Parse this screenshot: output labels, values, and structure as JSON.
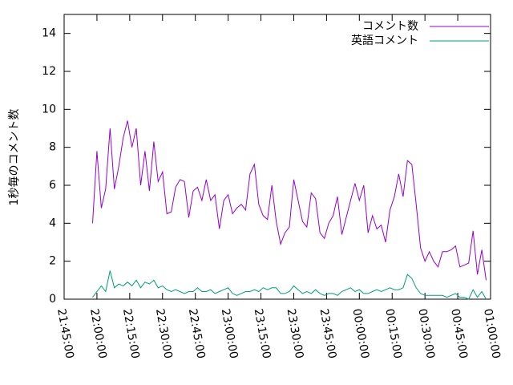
{
  "chart_data": {
    "type": "line",
    "ylabel": "1秒毎のコメント数",
    "x": [
      "21:58:00",
      "22:00:00",
      "22:02:00",
      "22:04:00",
      "22:06:00",
      "22:08:00",
      "22:10:00",
      "22:12:00",
      "22:14:00",
      "22:16:00",
      "22:18:00",
      "22:20:00",
      "22:22:00",
      "22:24:00",
      "22:26:00",
      "22:28:00",
      "22:30:00",
      "22:32:00",
      "22:34:00",
      "22:36:00",
      "22:38:00",
      "22:40:00",
      "22:42:00",
      "22:44:00",
      "22:46:00",
      "22:48:00",
      "22:50:00",
      "22:52:00",
      "22:54:00",
      "22:56:00",
      "22:58:00",
      "23:00:00",
      "23:02:00",
      "23:04:00",
      "23:06:00",
      "23:08:00",
      "23:10:00",
      "23:12:00",
      "23:14:00",
      "23:16:00",
      "23:18:00",
      "23:20:00",
      "23:22:00",
      "23:24:00",
      "23:26:00",
      "23:28:00",
      "23:30:00",
      "23:32:00",
      "23:34:00",
      "23:36:00",
      "23:38:00",
      "23:40:00",
      "23:42:00",
      "23:44:00",
      "23:46:00",
      "23:48:00",
      "23:50:00",
      "23:52:00",
      "23:54:00",
      "23:56:00",
      "23:58:00",
      "00:00:00",
      "00:02:00",
      "00:04:00",
      "00:06:00",
      "00:08:00",
      "00:10:00",
      "00:12:00",
      "00:14:00",
      "00:16:00",
      "00:18:00",
      "00:20:00",
      "00:22:00",
      "00:24:00",
      "00:26:00",
      "00:28:00",
      "00:30:00",
      "00:32:00",
      "00:34:00",
      "00:36:00",
      "00:38:00",
      "00:40:00",
      "00:42:00",
      "00:44:00",
      "00:46:00",
      "00:48:00",
      "00:50:00",
      "00:52:00",
      "00:54:00",
      "00:56:00",
      "00:58:00"
    ],
    "series": [
      {
        "name": "コメント数",
        "color": "#9400d3",
        "values": [
          4.0,
          7.8,
          4.8,
          5.8,
          9.0,
          5.8,
          7.0,
          8.5,
          9.4,
          8.0,
          9.0,
          6.0,
          7.8,
          5.7,
          8.3,
          6.2,
          6.7,
          4.5,
          4.6,
          5.9,
          6.3,
          6.2,
          4.3,
          5.7,
          5.9,
          5.2,
          6.3,
          5.2,
          5.5,
          3.7,
          5.2,
          5.5,
          4.5,
          4.8,
          5.0,
          4.7,
          6.6,
          7.1,
          5.0,
          4.4,
          4.2,
          6.0,
          4.1,
          2.9,
          3.5,
          3.8,
          6.3,
          5.2,
          4.1,
          3.8,
          5.6,
          5.3,
          3.5,
          3.2,
          4.0,
          4.4,
          5.4,
          3.4,
          4.3,
          5.2,
          6.1,
          5.2,
          6.0,
          3.5,
          4.4,
          3.7,
          3.9,
          3.0,
          4.7,
          5.4,
          6.6,
          5.4,
          7.3,
          7.1,
          5.0,
          2.7,
          2.0,
          2.5,
          2.0,
          1.7,
          2.5,
          2.5,
          2.6,
          2.8,
          1.7,
          1.8,
          1.9,
          3.6,
          1.3,
          2.6,
          1.0
        ]
      },
      {
        "name": "英語コメント",
        "color": "#009e73",
        "values": [
          0.1,
          0.4,
          0.7,
          0.4,
          1.5,
          0.6,
          0.8,
          0.7,
          0.9,
          0.7,
          1.0,
          0.6,
          0.9,
          0.8,
          1.0,
          0.6,
          0.7,
          0.5,
          0.4,
          0.5,
          0.4,
          0.3,
          0.4,
          0.4,
          0.6,
          0.4,
          0.4,
          0.5,
          0.3,
          0.4,
          0.5,
          0.6,
          0.3,
          0.2,
          0.3,
          0.4,
          0.4,
          0.5,
          0.4,
          0.6,
          0.5,
          0.6,
          0.6,
          0.3,
          0.3,
          0.4,
          0.7,
          0.5,
          0.3,
          0.4,
          0.3,
          0.5,
          0.3,
          0.2,
          0.3,
          0.3,
          0.2,
          0.4,
          0.5,
          0.6,
          0.4,
          0.5,
          0.3,
          0.3,
          0.4,
          0.5,
          0.4,
          0.5,
          0.6,
          0.5,
          0.5,
          0.6,
          1.3,
          1.1,
          0.6,
          0.3,
          0.2,
          0.2,
          0.2,
          0.2,
          0.2,
          0.1,
          0.2,
          0.3,
          0.1,
          0.1,
          0.0,
          0.5,
          0.1,
          0.4,
          0.0
        ]
      }
    ],
    "xlim": [
      "21:45:00",
      "01:00:00"
    ],
    "xticks": [
      "21:45:00",
      "22:00:00",
      "22:15:00",
      "22:30:00",
      "22:45:00",
      "23:00:00",
      "23:15:00",
      "23:30:00",
      "23:45:00",
      "00:00:00",
      "00:15:00",
      "00:30:00",
      "00:45:00",
      "01:00:00"
    ],
    "ylim": [
      0,
      15
    ],
    "yticks": [
      0,
      2,
      4,
      6,
      8,
      10,
      12,
      14
    ],
    "legend": "top-right"
  }
}
